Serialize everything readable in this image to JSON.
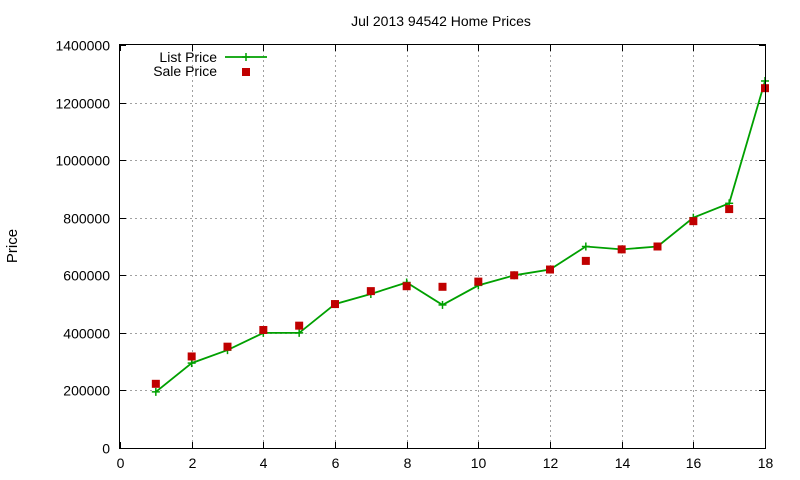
{
  "chart_data": {
    "type": "line",
    "title": "Jul 2013 94542 Home Prices",
    "xlabel": "",
    "ylabel": "Price",
    "xlim": [
      0,
      18
    ],
    "ylim": [
      0,
      1400000
    ],
    "xticks": [
      0,
      2,
      4,
      6,
      8,
      10,
      12,
      14,
      16,
      18
    ],
    "yticks": [
      0,
      200000,
      400000,
      600000,
      800000,
      1000000,
      1200000,
      1400000
    ],
    "grid": true,
    "legend_position": "top-left",
    "series": [
      {
        "name": "List Price",
        "style": "line-plus",
        "color": "#00a000",
        "x": [
          1,
          2,
          3,
          4,
          5,
          6,
          7,
          8,
          9,
          10,
          11,
          12,
          13,
          14,
          15,
          16,
          17,
          18
        ],
        "y": [
          195000,
          295000,
          340000,
          400000,
          400000,
          500000,
          535000,
          575000,
          497000,
          565000,
          600000,
          620000,
          700000,
          690000,
          700000,
          800000,
          850000,
          1275000
        ]
      },
      {
        "name": "Sale Price",
        "style": "points-square",
        "color": "#c00000",
        "x": [
          1,
          2,
          3,
          4,
          5,
          6,
          7,
          8,
          9,
          10,
          11,
          12,
          13,
          14,
          15,
          16,
          17,
          18
        ],
        "y": [
          223000,
          318000,
          352000,
          410000,
          425000,
          500000,
          545000,
          562000,
          560000,
          578000,
          600000,
          620000,
          650000,
          690000,
          700000,
          788000,
          830000,
          1250000
        ]
      }
    ]
  }
}
